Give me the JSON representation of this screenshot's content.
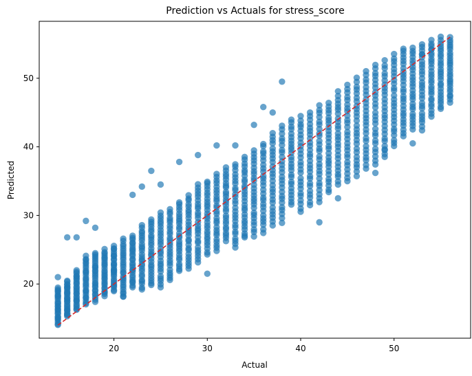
{
  "chart_data": {
    "type": "scatter",
    "title": "Prediction vs Actuals for stress_score",
    "xlabel": "Actual",
    "ylabel": "Predicted",
    "xlim": [
      12.0,
      58.2
    ],
    "ylim": [
      12.1,
      58.3
    ],
    "xticks": [
      {
        "value": 20,
        "label": "20"
      },
      {
        "value": 30,
        "label": "30"
      },
      {
        "value": 40,
        "label": "40"
      },
      {
        "value": 50,
        "label": "50"
      }
    ],
    "yticks": [
      {
        "value": 20,
        "label": "20"
      },
      {
        "value": 30,
        "label": "30"
      },
      {
        "value": 40,
        "label": "40"
      },
      {
        "value": 50,
        "label": "50"
      }
    ],
    "grid": false,
    "legend": "none",
    "point_color": "#1f77b4",
    "line_color": "#d62728",
    "reference_line": {
      "style": "dashed",
      "x": [
        14,
        56
      ],
      "y": [
        14,
        56
      ]
    },
    "series": [
      {
        "x_values": [
          14,
          15,
          16,
          17,
          18,
          19,
          20,
          21,
          22,
          23,
          24,
          25,
          26,
          27,
          28,
          29,
          30,
          31,
          32,
          33,
          34,
          35,
          36,
          37,
          38,
          39,
          40,
          41,
          42,
          43,
          44,
          45,
          46,
          47,
          48,
          49,
          50,
          51,
          52,
          53,
          54,
          55,
          56
        ],
        "y_low": [
          14.0,
          15.2,
          16.2,
          17.0,
          17.5,
          18.2,
          19.0,
          18.2,
          19.5,
          19.2,
          19.8,
          19.5,
          20.5,
          21.8,
          22.3,
          23.2,
          24.3,
          24.8,
          26.2,
          25.3,
          27.0,
          27.0,
          27.5,
          28.5,
          29.0,
          31.5,
          30.5,
          31.5,
          32.0,
          33.3,
          34.5,
          35.0,
          35.8,
          36.8,
          37.5,
          38.5,
          40.0,
          41.5,
          42.5,
          42.5,
          44.5,
          45.5,
          46.5
        ],
        "y_high": [
          19.5,
          20.5,
          22.0,
          24.0,
          24.5,
          25.0,
          25.5,
          26.5,
          27.0,
          28.5,
          29.5,
          30.5,
          31.0,
          32.0,
          33.0,
          34.5,
          35.0,
          36.0,
          37.0,
          37.5,
          38.5,
          39.5,
          40.5,
          42.0,
          43.0,
          44.0,
          44.5,
          45.0,
          46.0,
          46.5,
          48.0,
          49.0,
          50.0,
          51.0,
          52.0,
          52.5,
          53.5,
          54.0,
          54.5,
          55.0,
          55.5,
          56.0,
          56.0
        ],
        "outliers": [
          [
            14,
            21.0
          ],
          [
            15,
            26.8
          ],
          [
            16,
            26.8
          ],
          [
            17,
            29.2
          ],
          [
            18,
            28.2
          ],
          [
            20,
            22.0
          ],
          [
            21,
            18.2
          ],
          [
            22,
            33.0
          ],
          [
            23,
            34.2
          ],
          [
            24,
            36.5
          ],
          [
            25,
            34.5
          ],
          [
            27,
            37.8
          ],
          [
            29,
            38.8
          ],
          [
            30,
            21.5
          ],
          [
            31,
            40.2
          ],
          [
            33,
            40.2
          ],
          [
            34,
            26.8
          ],
          [
            35,
            43.2
          ],
          [
            36,
            45.8
          ],
          [
            37,
            45.0
          ],
          [
            38,
            49.5
          ],
          [
            42,
            29.0
          ],
          [
            44,
            32.5
          ],
          [
            48,
            36.2
          ],
          [
            49,
            39.5
          ],
          [
            51,
            54.3
          ],
          [
            52,
            40.5
          ],
          [
            53,
            53.5
          ],
          [
            54,
            54.2
          ]
        ]
      }
    ]
  }
}
